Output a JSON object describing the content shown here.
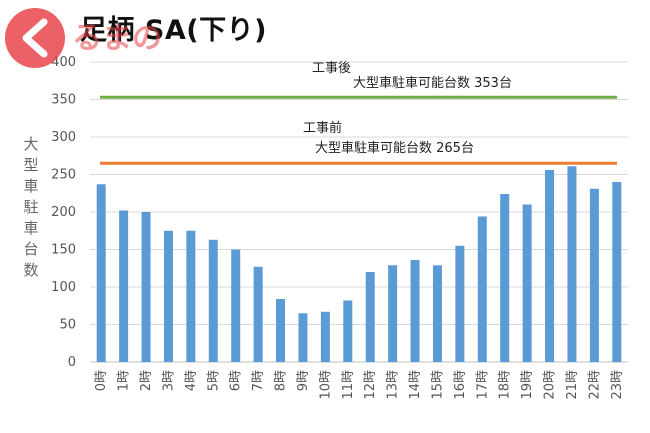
{
  "chart_data": {
    "type": "bar",
    "title": "足柄 SA(下り)",
    "ylabel": "大型車駐車台数",
    "xlabel": "",
    "ylim": [
      0,
      400
    ],
    "yticks": [
      0,
      50,
      100,
      150,
      200,
      250,
      300,
      350,
      400
    ],
    "grid": true,
    "categories": [
      "0時",
      "1時",
      "2時",
      "3時",
      "4時",
      "5時",
      "6時",
      "7時",
      "8時",
      "9時",
      "10時",
      "11時",
      "12時",
      "13時",
      "14時",
      "15時",
      "16時",
      "17時",
      "18時",
      "19時",
      "20時",
      "21時",
      "22時",
      "23時"
    ],
    "values": [
      237,
      202,
      200,
      175,
      175,
      163,
      150,
      127,
      84,
      65,
      67,
      82,
      120,
      129,
      136,
      129,
      155,
      194,
      224,
      210,
      256,
      261,
      231,
      240
    ],
    "bar_color": "#5b9bd5",
    "reference_lines": [
      {
        "label_top": "工事後",
        "label_bottom": "大型車駐車可能台数 353台",
        "value": 353,
        "color": "#70ad47"
      },
      {
        "label_top": "工事前",
        "label_bottom": "大型車駐車可能台数 265台",
        "value": 265,
        "color": "#ed7d31"
      }
    ]
  },
  "watermark": {
    "text": "くるまのニュース",
    "color": "#e8454a"
  }
}
